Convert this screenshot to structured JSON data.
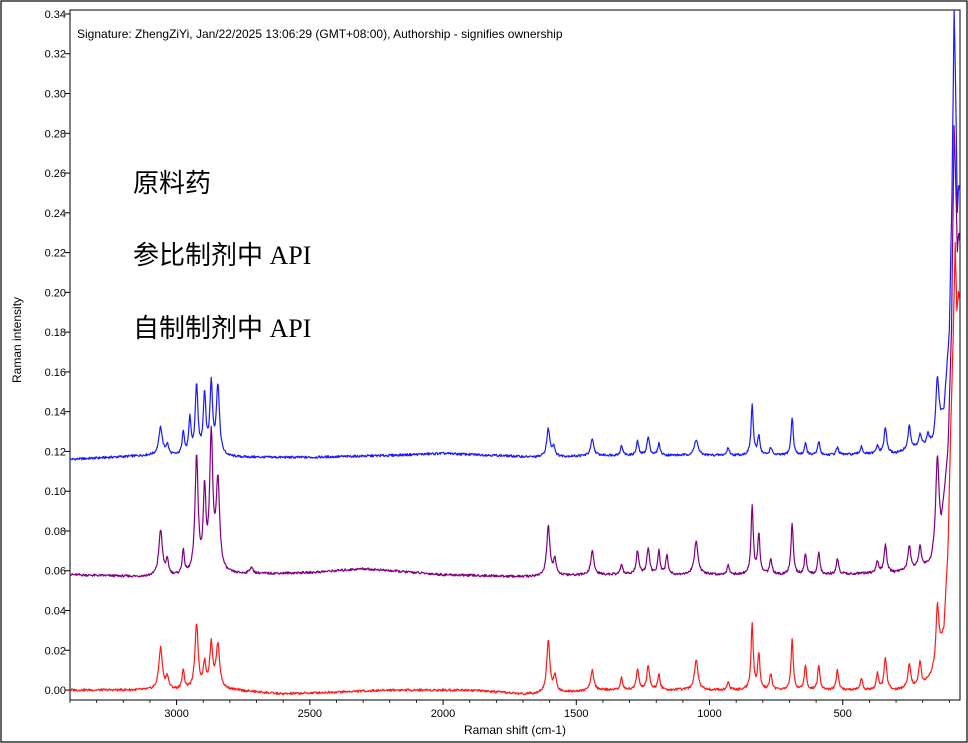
{
  "signature": "Signature: ZhengZiYi, Jan/22/2025 13:06:29 (GMT+08:00), Authorship - signifies ownership",
  "chart_data": {
    "type": "line",
    "xlabel": "Raman shift (cm-1)",
    "ylabel": "Raman intensity",
    "xlim": [
      3400,
      60
    ],
    "ylim": [
      -0.005,
      0.342
    ],
    "x_reversed": true,
    "grid": false,
    "x_ticks": [
      3000,
      2500,
      2000,
      1500,
      1000,
      500
    ],
    "x_tick_labels": [
      "3000",
      "2500",
      "2000",
      "1500",
      "1000",
      "500"
    ],
    "y_ticks": [
      0.0,
      0.02,
      0.04,
      0.06,
      0.08,
      0.1,
      0.12,
      0.14,
      0.16,
      0.18,
      0.2,
      0.22,
      0.24,
      0.26,
      0.28,
      0.3,
      0.32,
      0.34
    ],
    "y_tick_labels": [
      "0.00",
      "0.02",
      "0.04",
      "0.06",
      "0.08",
      "0.10",
      "0.12",
      "0.14",
      "0.16",
      "0.18",
      "0.20",
      "0.22",
      "0.24",
      "0.26",
      "0.28",
      "0.30",
      "0.32",
      "0.34"
    ],
    "legend_position": "top-left",
    "series": [
      {
        "name": "原料药",
        "color": "#1a1aff",
        "baseline": 0.117,
        "baseline_points": [
          [
            3400,
            0.116
          ],
          [
            3100,
            0.118
          ],
          [
            2800,
            0.117
          ],
          [
            2500,
            0.117
          ],
          [
            2200,
            0.118
          ],
          [
            2000,
            0.119
          ],
          [
            1800,
            0.118
          ],
          [
            1650,
            0.117
          ],
          [
            1400,
            0.118
          ],
          [
            1000,
            0.118
          ],
          [
            600,
            0.118
          ],
          [
            300,
            0.119
          ],
          [
            160,
            0.124
          ],
          [
            120,
            0.14
          ],
          [
            100,
            0.18
          ],
          [
            90,
            0.25
          ],
          [
            82,
            0.342
          ],
          [
            76,
            0.3
          ],
          [
            70,
            0.24
          ],
          [
            65,
            0.255
          ],
          [
            60,
            0.25
          ]
        ],
        "peaks": [
          [
            3060,
            0.014,
            8
          ],
          [
            3035,
            0.005,
            6
          ],
          [
            2975,
            0.012,
            5
          ],
          [
            2950,
            0.018,
            5
          ],
          [
            2925,
            0.035,
            6
          ],
          [
            2895,
            0.03,
            6
          ],
          [
            2870,
            0.035,
            6
          ],
          [
            2845,
            0.035,
            7
          ],
          [
            1605,
            0.014,
            7
          ],
          [
            1585,
            0.005,
            6
          ],
          [
            1440,
            0.008,
            7
          ],
          [
            1330,
            0.005,
            5
          ],
          [
            1270,
            0.007,
            5
          ],
          [
            1230,
            0.009,
            6
          ],
          [
            1190,
            0.006,
            5
          ],
          [
            1050,
            0.008,
            8
          ],
          [
            930,
            0.004,
            5
          ],
          [
            840,
            0.025,
            5
          ],
          [
            815,
            0.01,
            5
          ],
          [
            770,
            0.004,
            5
          ],
          [
            690,
            0.019,
            5
          ],
          [
            640,
            0.006,
            5
          ],
          [
            590,
            0.007,
            5
          ],
          [
            520,
            0.004,
            5
          ],
          [
            430,
            0.004,
            5
          ],
          [
            370,
            0.004,
            5
          ],
          [
            340,
            0.013,
            6
          ],
          [
            250,
            0.012,
            6
          ],
          [
            210,
            0.006,
            6
          ],
          [
            180,
            0.005,
            5
          ],
          [
            145,
            0.028,
            7
          ]
        ]
      },
      {
        "name": "参比制剂中 API",
        "color": "#800080",
        "baseline": 0.058,
        "baseline_points": [
          [
            3400,
            0.058
          ],
          [
            3150,
            0.057
          ],
          [
            2900,
            0.057
          ],
          [
            2800,
            0.058
          ],
          [
            2500,
            0.059
          ],
          [
            2300,
            0.061
          ],
          [
            2000,
            0.058
          ],
          [
            1700,
            0.057
          ],
          [
            1400,
            0.058
          ],
          [
            1000,
            0.058
          ],
          [
            600,
            0.058
          ],
          [
            300,
            0.059
          ],
          [
            170,
            0.063
          ],
          [
            130,
            0.08
          ],
          [
            105,
            0.12
          ],
          [
            92,
            0.18
          ],
          [
            82,
            0.283
          ],
          [
            76,
            0.255
          ],
          [
            70,
            0.22
          ],
          [
            65,
            0.23
          ],
          [
            60,
            0.225
          ]
        ],
        "peaks": [
          [
            3060,
            0.023,
            8
          ],
          [
            3035,
            0.007,
            6
          ],
          [
            2975,
            0.012,
            5
          ],
          [
            2925,
            0.059,
            7
          ],
          [
            2895,
            0.04,
            6
          ],
          [
            2870,
            0.068,
            7
          ],
          [
            2845,
            0.045,
            8
          ],
          [
            2720,
            0.003,
            8
          ],
          [
            1605,
            0.025,
            7
          ],
          [
            1580,
            0.008,
            6
          ],
          [
            1440,
            0.012,
            7
          ],
          [
            1330,
            0.005,
            5
          ],
          [
            1270,
            0.012,
            6
          ],
          [
            1230,
            0.013,
            6
          ],
          [
            1190,
            0.012,
            5
          ],
          [
            1160,
            0.01,
            5
          ],
          [
            1050,
            0.017,
            8
          ],
          [
            930,
            0.005,
            5
          ],
          [
            840,
            0.034,
            5
          ],
          [
            815,
            0.02,
            5
          ],
          [
            770,
            0.008,
            5
          ],
          [
            690,
            0.026,
            5
          ],
          [
            640,
            0.01,
            5
          ],
          [
            590,
            0.011,
            5
          ],
          [
            520,
            0.008,
            5
          ],
          [
            370,
            0.006,
            5
          ],
          [
            340,
            0.014,
            6
          ],
          [
            250,
            0.012,
            6
          ],
          [
            210,
            0.01,
            6
          ],
          [
            145,
            0.045,
            7
          ]
        ]
      },
      {
        "name": "自制制剂中 API",
        "color": "#ff1a1a",
        "baseline": 0.0,
        "baseline_points": [
          [
            3400,
            0.0
          ],
          [
            3200,
            0.0
          ],
          [
            3000,
            0.0
          ],
          [
            2800,
            0.0
          ],
          [
            2600,
            -0.002
          ],
          [
            2200,
            0.0
          ],
          [
            1900,
            0.0
          ],
          [
            1700,
            -0.002
          ],
          [
            1400,
            0.0
          ],
          [
            1000,
            0.0
          ],
          [
            600,
            0.0
          ],
          [
            300,
            0.0
          ],
          [
            200,
            0.002
          ],
          [
            150,
            0.01
          ],
          [
            120,
            0.03
          ],
          [
            105,
            0.07
          ],
          [
            95,
            0.13
          ],
          [
            85,
            0.18
          ],
          [
            78,
            0.225
          ],
          [
            72,
            0.19
          ],
          [
            66,
            0.2
          ],
          [
            60,
            0.195
          ]
        ],
        "peaks": [
          [
            3060,
            0.021,
            8
          ],
          [
            3035,
            0.006,
            6
          ],
          [
            2975,
            0.01,
            5
          ],
          [
            2925,
            0.033,
            7
          ],
          [
            2895,
            0.012,
            6
          ],
          [
            2870,
            0.022,
            7
          ],
          [
            2845,
            0.022,
            8
          ],
          [
            1605,
            0.026,
            7
          ],
          [
            1580,
            0.008,
            6
          ],
          [
            1440,
            0.01,
            7
          ],
          [
            1330,
            0.006,
            5
          ],
          [
            1270,
            0.01,
            6
          ],
          [
            1230,
            0.012,
            6
          ],
          [
            1190,
            0.008,
            5
          ],
          [
            1050,
            0.015,
            8
          ],
          [
            930,
            0.004,
            5
          ],
          [
            840,
            0.033,
            5
          ],
          [
            815,
            0.018,
            5
          ],
          [
            770,
            0.008,
            5
          ],
          [
            690,
            0.025,
            5
          ],
          [
            640,
            0.012,
            5
          ],
          [
            590,
            0.012,
            5
          ],
          [
            520,
            0.01,
            5
          ],
          [
            430,
            0.006,
            5
          ],
          [
            370,
            0.008,
            5
          ],
          [
            340,
            0.016,
            6
          ],
          [
            250,
            0.012,
            6
          ],
          [
            210,
            0.012,
            6
          ],
          [
            145,
            0.03,
            7
          ]
        ]
      }
    ]
  }
}
